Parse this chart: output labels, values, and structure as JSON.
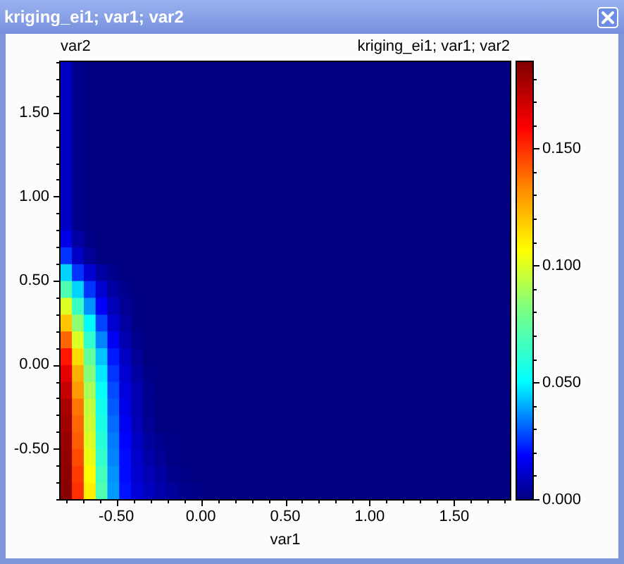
{
  "chart_data": {
    "type": "heatmap",
    "title": "kriging_ei1; var1; var2",
    "subtitle": "kriging_ei1; var1; var2",
    "xlabel": "var1",
    "ylabel": "var2",
    "cells": [
      [
        0.01,
        0.002,
        0,
        0,
        0,
        0,
        0,
        0,
        0,
        0,
        0,
        0,
        0,
        0,
        0,
        0,
        0,
        0,
        0,
        0,
        0,
        0,
        0,
        0,
        0,
        0,
        0,
        0,
        0,
        0,
        0,
        0,
        0,
        0,
        0,
        0,
        0,
        0
      ],
      [
        0.01,
        0.002,
        0,
        0,
        0,
        0,
        0,
        0,
        0,
        0,
        0,
        0,
        0,
        0,
        0,
        0,
        0,
        0,
        0,
        0,
        0,
        0,
        0,
        0,
        0,
        0,
        0,
        0,
        0,
        0,
        0,
        0,
        0,
        0,
        0,
        0,
        0,
        0
      ],
      [
        0.01,
        0.002,
        0,
        0,
        0,
        0,
        0,
        0,
        0,
        0,
        0,
        0,
        0,
        0,
        0,
        0,
        0,
        0,
        0,
        0,
        0,
        0,
        0,
        0,
        0,
        0,
        0,
        0,
        0,
        0,
        0,
        0,
        0,
        0,
        0,
        0,
        0,
        0
      ],
      [
        0.01,
        0.002,
        0,
        0,
        0,
        0,
        0,
        0,
        0,
        0,
        0,
        0,
        0,
        0,
        0,
        0,
        0,
        0,
        0,
        0,
        0,
        0,
        0,
        0,
        0,
        0,
        0,
        0,
        0,
        0,
        0,
        0,
        0,
        0,
        0,
        0,
        0,
        0
      ],
      [
        0.01,
        0.002,
        0,
        0,
        0,
        0,
        0,
        0,
        0,
        0,
        0,
        0,
        0,
        0,
        0,
        0,
        0,
        0,
        0,
        0,
        0,
        0,
        0,
        0,
        0,
        0,
        0,
        0,
        0,
        0,
        0,
        0,
        0,
        0,
        0,
        0,
        0,
        0
      ],
      [
        0.01,
        0.002,
        0,
        0,
        0,
        0,
        0,
        0,
        0,
        0,
        0,
        0,
        0,
        0,
        0,
        0,
        0,
        0,
        0,
        0,
        0,
        0,
        0,
        0,
        0,
        0,
        0,
        0,
        0,
        0,
        0,
        0,
        0,
        0,
        0,
        0,
        0,
        0
      ],
      [
        0.01,
        0.002,
        0,
        0,
        0,
        0,
        0,
        0,
        0,
        0,
        0,
        0,
        0,
        0,
        0,
        0,
        0,
        0,
        0,
        0,
        0,
        0,
        0,
        0,
        0,
        0,
        0,
        0,
        0,
        0,
        0,
        0,
        0,
        0,
        0,
        0,
        0,
        0
      ],
      [
        0.01,
        0.002,
        0,
        0,
        0,
        0,
        0,
        0,
        0,
        0,
        0,
        0,
        0,
        0,
        0,
        0,
        0,
        0,
        0,
        0,
        0,
        0,
        0,
        0,
        0,
        0,
        0,
        0,
        0,
        0,
        0,
        0,
        0,
        0,
        0,
        0,
        0,
        0
      ],
      [
        0.01,
        0.002,
        0,
        0,
        0,
        0,
        0,
        0,
        0,
        0,
        0,
        0,
        0,
        0,
        0,
        0,
        0,
        0,
        0,
        0,
        0,
        0,
        0,
        0,
        0,
        0,
        0,
        0,
        0,
        0,
        0,
        0,
        0,
        0,
        0,
        0,
        0,
        0
      ],
      [
        0.01,
        0.002,
        0,
        0,
        0,
        0,
        0,
        0,
        0,
        0,
        0,
        0,
        0,
        0,
        0,
        0,
        0,
        0,
        0,
        0,
        0,
        0,
        0,
        0,
        0,
        0,
        0,
        0,
        0,
        0,
        0,
        0,
        0,
        0,
        0,
        0,
        0,
        0
      ],
      [
        0.015,
        0.005,
        0.001,
        0,
        0,
        0,
        0,
        0,
        0,
        0,
        0,
        0,
        0,
        0,
        0,
        0,
        0,
        0,
        0,
        0,
        0,
        0,
        0,
        0,
        0,
        0,
        0,
        0,
        0,
        0,
        0,
        0,
        0,
        0,
        0,
        0,
        0,
        0
      ],
      [
        0.025,
        0.01,
        0.003,
        0,
        0,
        0,
        0,
        0,
        0,
        0,
        0,
        0,
        0,
        0,
        0,
        0,
        0,
        0,
        0,
        0,
        0,
        0,
        0,
        0,
        0,
        0,
        0,
        0,
        0,
        0,
        0,
        0,
        0,
        0,
        0,
        0,
        0,
        0
      ],
      [
        0.045,
        0.025,
        0.012,
        0.005,
        0.002,
        0,
        0,
        0,
        0,
        0,
        0,
        0,
        0,
        0,
        0,
        0,
        0,
        0,
        0,
        0,
        0,
        0,
        0,
        0,
        0,
        0,
        0,
        0,
        0,
        0,
        0,
        0,
        0,
        0,
        0,
        0,
        0,
        0
      ],
      [
        0.07,
        0.045,
        0.025,
        0.012,
        0.005,
        0.002,
        0,
        0,
        0,
        0,
        0,
        0,
        0,
        0,
        0,
        0,
        0,
        0,
        0,
        0,
        0,
        0,
        0,
        0,
        0,
        0,
        0,
        0,
        0,
        0,
        0,
        0,
        0,
        0,
        0,
        0,
        0,
        0
      ],
      [
        0.1,
        0.065,
        0.037,
        0.018,
        0.008,
        0.003,
        0.001,
        0,
        0,
        0,
        0,
        0,
        0,
        0,
        0,
        0,
        0,
        0,
        0,
        0,
        0,
        0,
        0,
        0,
        0,
        0,
        0,
        0,
        0,
        0,
        0,
        0,
        0,
        0,
        0,
        0,
        0,
        0
      ],
      [
        0.12,
        0.085,
        0.05,
        0.027,
        0.012,
        0.005,
        0.001,
        0,
        0,
        0,
        0,
        0,
        0,
        0,
        0,
        0,
        0,
        0,
        0,
        0,
        0,
        0,
        0,
        0,
        0,
        0,
        0,
        0,
        0,
        0,
        0,
        0,
        0,
        0,
        0,
        0,
        0,
        0
      ],
      [
        0.14,
        0.1,
        0.063,
        0.035,
        0.017,
        0.007,
        0.002,
        0,
        0,
        0,
        0,
        0,
        0,
        0,
        0,
        0,
        0,
        0,
        0,
        0,
        0,
        0,
        0,
        0,
        0,
        0,
        0,
        0,
        0,
        0,
        0,
        0,
        0,
        0,
        0,
        0,
        0,
        0
      ],
      [
        0.155,
        0.115,
        0.075,
        0.043,
        0.022,
        0.01,
        0.003,
        0,
        0,
        0,
        0,
        0,
        0,
        0,
        0,
        0,
        0,
        0,
        0,
        0,
        0,
        0,
        0,
        0,
        0,
        0,
        0,
        0,
        0,
        0,
        0,
        0,
        0,
        0,
        0,
        0,
        0,
        0
      ],
      [
        0.165,
        0.125,
        0.083,
        0.048,
        0.025,
        0.012,
        0.005,
        0.001,
        0,
        0,
        0,
        0,
        0,
        0,
        0,
        0,
        0,
        0,
        0,
        0,
        0,
        0,
        0,
        0,
        0,
        0,
        0,
        0,
        0,
        0,
        0,
        0,
        0,
        0,
        0,
        0,
        0,
        0
      ],
      [
        0.172,
        0.13,
        0.09,
        0.052,
        0.028,
        0.014,
        0.007,
        0.002,
        0,
        0,
        0,
        0,
        0,
        0,
        0,
        0,
        0,
        0,
        0,
        0,
        0,
        0,
        0,
        0,
        0,
        0,
        0,
        0,
        0,
        0,
        0,
        0,
        0,
        0,
        0,
        0,
        0,
        0
      ],
      [
        0.178,
        0.137,
        0.095,
        0.055,
        0.03,
        0.015,
        0.007,
        0.002,
        0,
        0,
        0,
        0,
        0,
        0,
        0,
        0,
        0,
        0,
        0,
        0,
        0,
        0,
        0,
        0,
        0,
        0,
        0,
        0,
        0,
        0,
        0,
        0,
        0,
        0,
        0,
        0,
        0,
        0
      ],
      [
        0.18,
        0.14,
        0.097,
        0.057,
        0.032,
        0.017,
        0.008,
        0.003,
        0,
        0,
        0,
        0,
        0,
        0,
        0,
        0,
        0,
        0,
        0,
        0,
        0,
        0,
        0,
        0,
        0,
        0,
        0,
        0,
        0,
        0,
        0,
        0,
        0,
        0,
        0,
        0,
        0,
        0
      ],
      [
        0.182,
        0.142,
        0.1,
        0.06,
        0.034,
        0.019,
        0.01,
        0.004,
        0.002,
        0.001,
        0,
        0,
        0,
        0,
        0,
        0,
        0,
        0,
        0,
        0,
        0,
        0,
        0,
        0,
        0,
        0,
        0,
        0,
        0,
        0,
        0,
        0,
        0,
        0,
        0,
        0,
        0,
        0
      ],
      [
        0.183,
        0.145,
        0.103,
        0.063,
        0.035,
        0.02,
        0.011,
        0.006,
        0.003,
        0.001,
        0,
        0,
        0,
        0,
        0,
        0,
        0,
        0,
        0,
        0,
        0,
        0,
        0,
        0,
        0,
        0,
        0,
        0,
        0,
        0,
        0,
        0,
        0,
        0,
        0,
        0,
        0,
        0
      ],
      [
        0.184,
        0.148,
        0.107,
        0.067,
        0.037,
        0.02,
        0.012,
        0.008,
        0.005,
        0.002,
        0.001,
        0,
        0,
        0,
        0,
        0,
        0,
        0,
        0,
        0,
        0,
        0,
        0,
        0,
        0,
        0,
        0,
        0,
        0,
        0,
        0,
        0,
        0,
        0,
        0,
        0,
        0,
        0
      ],
      [
        0.185,
        0.15,
        0.11,
        0.07,
        0.038,
        0.021,
        0.013,
        0.009,
        0.006,
        0.004,
        0.002,
        0.001,
        0,
        0,
        0,
        0,
        0,
        0,
        0,
        0,
        0,
        0,
        0,
        0,
        0,
        0,
        0,
        0,
        0,
        0,
        0,
        0,
        0,
        0,
        0,
        0,
        0,
        0
      ]
    ],
    "clim": [
      0,
      0.187
    ],
    "cticks": [
      {
        "value": 0,
        "label": "0.000"
      },
      {
        "value": 0.01,
        "label": null
      },
      {
        "value": 0.02,
        "label": null
      },
      {
        "value": 0.03,
        "label": null
      },
      {
        "value": 0.04,
        "label": null
      },
      {
        "value": 0.05,
        "label": "0.050"
      },
      {
        "value": 0.06,
        "label": null
      },
      {
        "value": 0.07,
        "label": null
      },
      {
        "value": 0.08,
        "label": null
      },
      {
        "value": 0.09,
        "label": null
      },
      {
        "value": 0.1,
        "label": "0.100"
      },
      {
        "value": 0.11,
        "label": null
      },
      {
        "value": 0.12,
        "label": null
      },
      {
        "value": 0.13,
        "label": null
      },
      {
        "value": 0.14,
        "label": null
      },
      {
        "value": 0.15,
        "label": "0.150"
      },
      {
        "value": 0.16,
        "label": null
      },
      {
        "value": 0.17,
        "label": null
      },
      {
        "value": 0.18,
        "label": null
      }
    ],
    "xlim": [
      -0.83,
      1.83
    ],
    "xticks": [
      {
        "value": -0.8,
        "label": null
      },
      {
        "value": -0.7,
        "label": null
      },
      {
        "value": -0.6,
        "label": null
      },
      {
        "value": -0.5,
        "label": "-0.50"
      },
      {
        "value": -0.4,
        "label": null
      },
      {
        "value": -0.3,
        "label": null
      },
      {
        "value": -0.2,
        "label": null
      },
      {
        "value": -0.1,
        "label": null
      },
      {
        "value": 0,
        "label": "0.00"
      },
      {
        "value": 0.1,
        "label": null
      },
      {
        "value": 0.2,
        "label": null
      },
      {
        "value": 0.3,
        "label": null
      },
      {
        "value": 0.4,
        "label": null
      },
      {
        "value": 0.5,
        "label": "0.50"
      },
      {
        "value": 0.6,
        "label": null
      },
      {
        "value": 0.7,
        "label": null
      },
      {
        "value": 0.8,
        "label": null
      },
      {
        "value": 0.9,
        "label": null
      },
      {
        "value": 1,
        "label": "1.00"
      },
      {
        "value": 1.1,
        "label": null
      },
      {
        "value": 1.2,
        "label": null
      },
      {
        "value": 1.3,
        "label": null
      },
      {
        "value": 1.4,
        "label": null
      },
      {
        "value": 1.5,
        "label": "1.50"
      },
      {
        "value": 1.6,
        "label": null
      },
      {
        "value": 1.7,
        "label": null
      },
      {
        "value": 1.8,
        "label": null
      }
    ],
    "ylim": [
      -0.8,
      1.8
    ],
    "yticks": [
      {
        "value": -0.8,
        "label": null
      },
      {
        "value": -0.7,
        "label": null
      },
      {
        "value": -0.6,
        "label": null
      },
      {
        "value": -0.5,
        "label": "-0.50"
      },
      {
        "value": -0.4,
        "label": null
      },
      {
        "value": -0.3,
        "label": null
      },
      {
        "value": -0.2,
        "label": null
      },
      {
        "value": -0.1,
        "label": null
      },
      {
        "value": 0,
        "label": "0.00"
      },
      {
        "value": 0.1,
        "label": null
      },
      {
        "value": 0.2,
        "label": null
      },
      {
        "value": 0.3,
        "label": null
      },
      {
        "value": 0.4,
        "label": null
      },
      {
        "value": 0.5,
        "label": "0.50"
      },
      {
        "value": 0.6,
        "label": null
      },
      {
        "value": 0.7,
        "label": null
      },
      {
        "value": 0.8,
        "label": null
      },
      {
        "value": 0.9,
        "label": null
      },
      {
        "value": 1,
        "label": "1.00"
      },
      {
        "value": 1.1,
        "label": null
      },
      {
        "value": 1.2,
        "label": null
      },
      {
        "value": 1.3,
        "label": null
      },
      {
        "value": 1.4,
        "label": null
      },
      {
        "value": 1.5,
        "label": "1.50"
      },
      {
        "value": 1.6,
        "label": null
      },
      {
        "value": 1.7,
        "label": null
      },
      {
        "value": 1.8,
        "label": null
      }
    ]
  }
}
